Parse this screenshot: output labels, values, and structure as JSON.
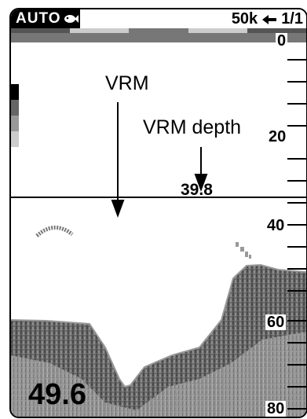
{
  "status_bar": {
    "mode": "AUTO",
    "frequency": "50k",
    "range_shift": "1/1"
  },
  "icons": [
    "fish-icon",
    "arrow-left-icon"
  ],
  "depth_scale": {
    "labels": [
      "0",
      "20",
      "40",
      "60",
      "80"
    ],
    "values": [
      0,
      20,
      40,
      60,
      80
    ]
  },
  "annotations": {
    "vrm": "VRM",
    "vrm_depth": "VRM depth"
  },
  "vrm_marker": {
    "depth": 39.8,
    "depth_text": "39.8"
  },
  "bottom_depth": {
    "value": 49.6,
    "text": "49.6"
  },
  "colors": {
    "echo_strong": "#5a5a5a",
    "echo_medium": "#8a8a8a",
    "echo_weak": "#b5b5b5",
    "frame": "#000000"
  }
}
